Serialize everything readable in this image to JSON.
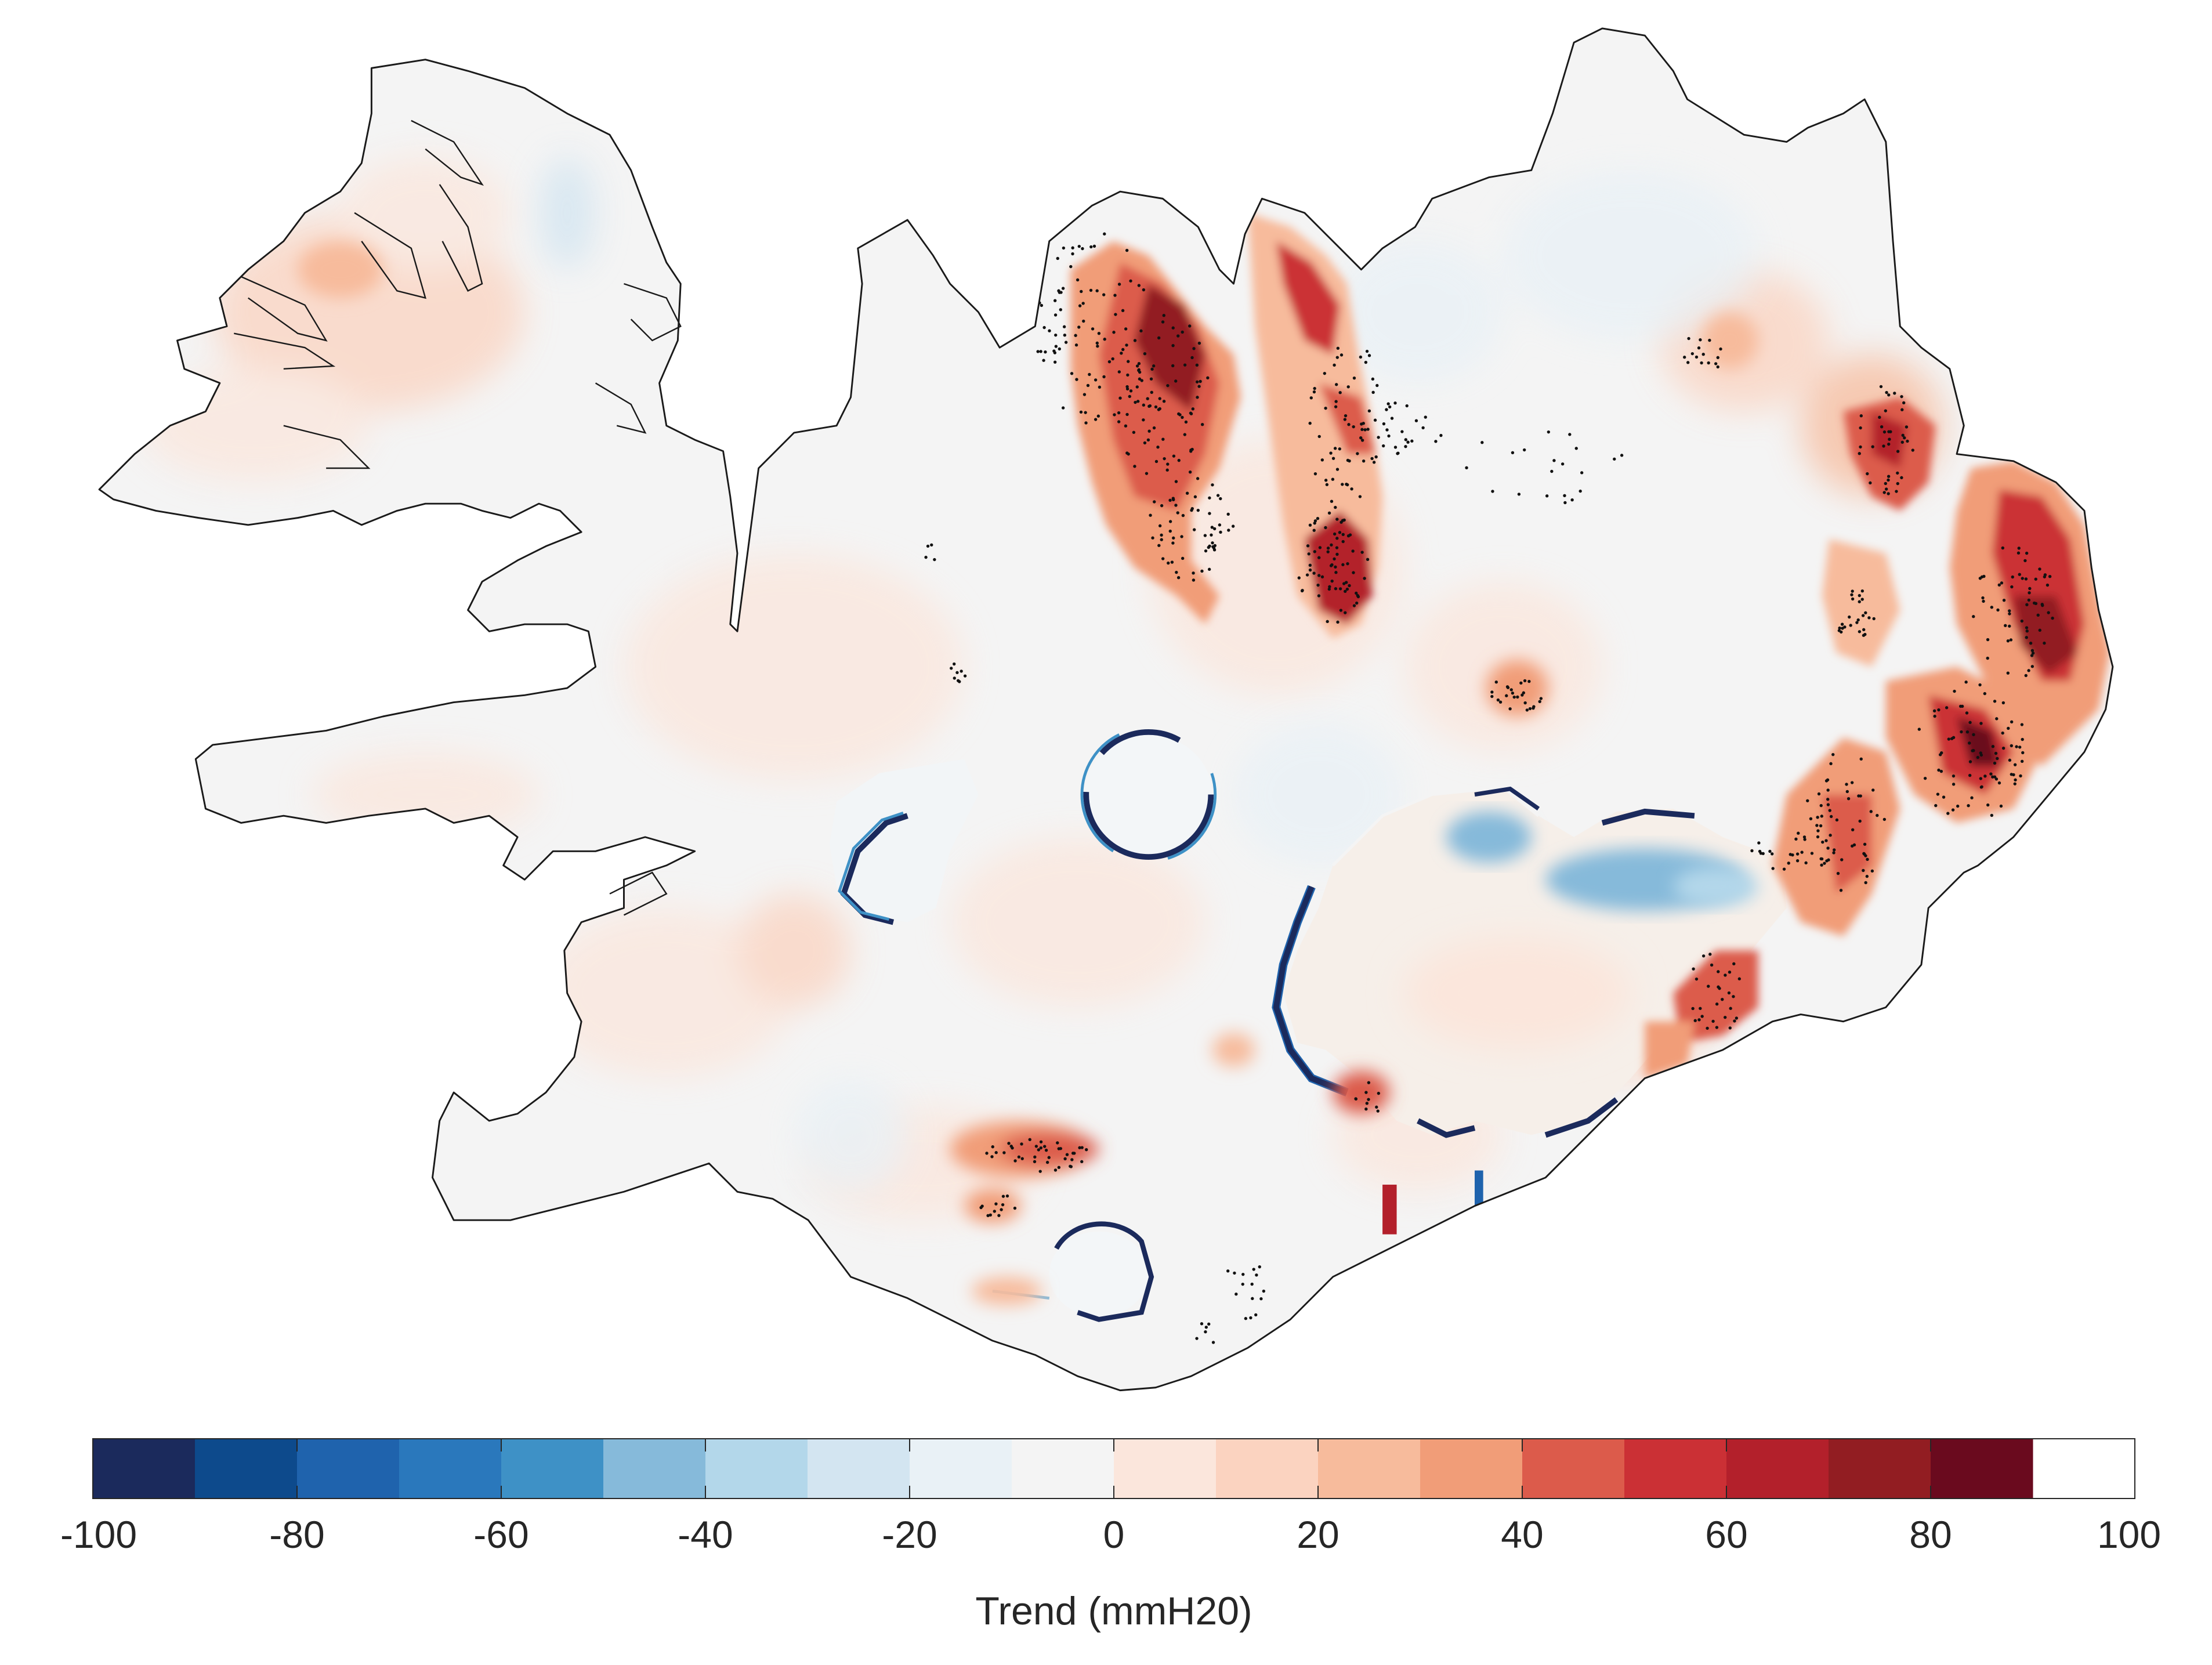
{
  "figure": {
    "colorbar": {
      "label": "Trend (mmH20)",
      "min": -100,
      "max": 100,
      "ticks": [
        -100,
        -80,
        -60,
        -40,
        -20,
        0,
        20,
        40,
        60,
        80,
        100
      ],
      "tick_labels": [
        "-100",
        "-80",
        "-60",
        "-40",
        "-20",
        "0",
        "20",
        "40",
        "60",
        "80",
        "100"
      ],
      "bins": [
        {
          "from": -100,
          "to": -90,
          "color": "#1b2a5c"
        },
        {
          "from": -90,
          "to": -80,
          "color": "#0d4a8c"
        },
        {
          "from": -80,
          "to": -70,
          "color": "#1f63ad"
        },
        {
          "from": -70,
          "to": -60,
          "color": "#2a78bc"
        },
        {
          "from": -60,
          "to": -50,
          "color": "#3e91c6"
        },
        {
          "from": -50,
          "to": -40,
          "color": "#86bada"
        },
        {
          "from": -40,
          "to": -30,
          "color": "#b3d7ea"
        },
        {
          "from": -30,
          "to": -20,
          "color": "#d3e5f1"
        },
        {
          "from": -20,
          "to": -10,
          "color": "#e9f1f6"
        },
        {
          "from": -10,
          "to": 0,
          "color": "#f4f4f4"
        },
        {
          "from": 0,
          "to": 10,
          "color": "#fbe6dc"
        },
        {
          "from": 10,
          "to": 20,
          "color": "#fbd3c0"
        },
        {
          "from": 20,
          "to": 30,
          "color": "#f7bb9c"
        },
        {
          "from": 30,
          "to": 40,
          "color": "#f19d78"
        },
        {
          "from": 40,
          "to": 50,
          "color": "#dc5b4b"
        },
        {
          "from": 50,
          "to": 60,
          "color": "#cb3035"
        },
        {
          "from": 60,
          "to": 70,
          "color": "#b3202b"
        },
        {
          "from": 70,
          "to": 80,
          "color": "#921d22"
        },
        {
          "from": 80,
          "to": 90,
          "color": "#6a0a1e"
        }
      ]
    },
    "map": {
      "region": "Iceland",
      "outline_color": "#1a1a1a",
      "land_base_color": "#f4f4f4",
      "significance_marker": "dot"
    }
  }
}
